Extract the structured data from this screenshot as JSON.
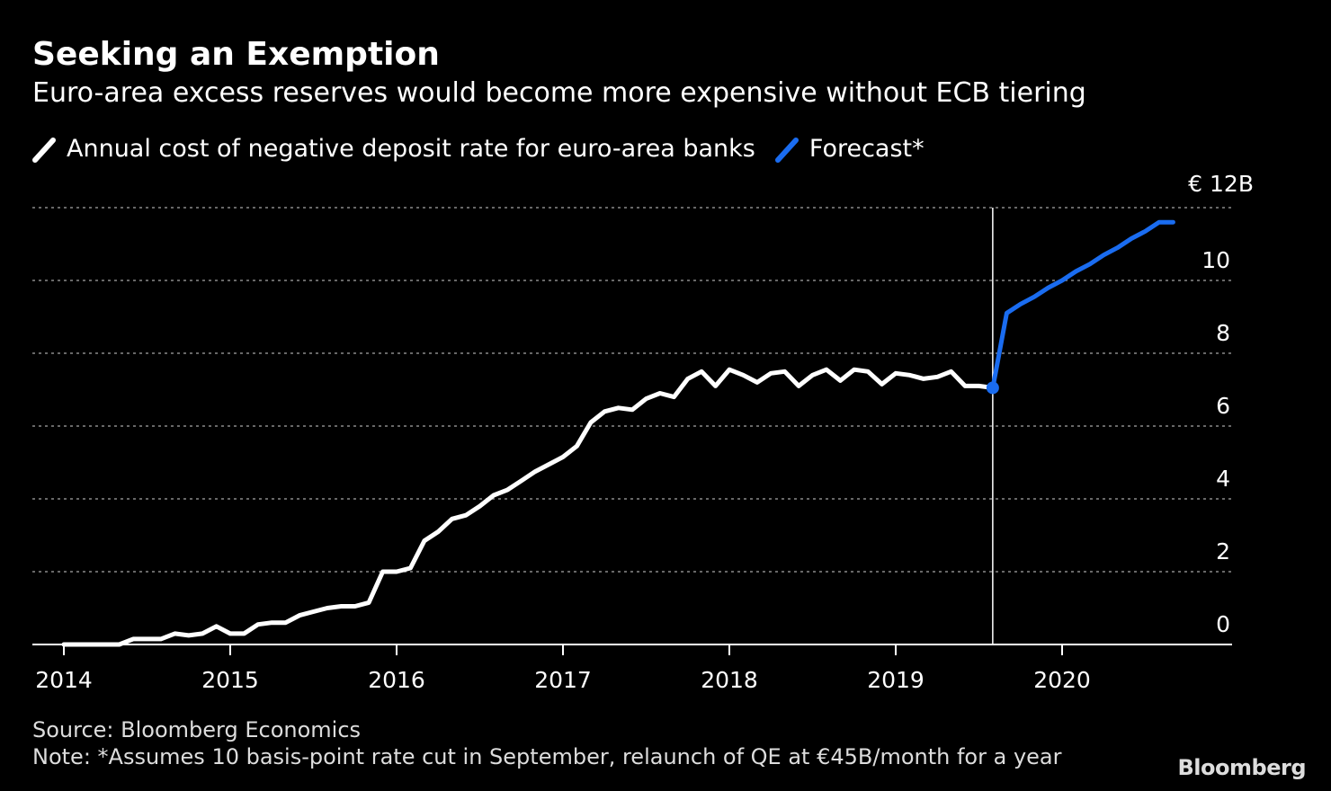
{
  "title": "Seeking an Exemption",
  "subtitle": "Euro-area excess reserves would become more expensive without ECB tiering",
  "legend": [
    {
      "label": "Annual cost of negative deposit rate for euro-area banks",
      "color": "#ffffff"
    },
    {
      "label": "Forecast*",
      "color": "#1a6cf0"
    }
  ],
  "source": "Source: Bloomberg Economics",
  "note": "Note: *Assumes 10 basis-point rate cut in September, relaunch of QE at €45B/month for a year",
  "logo": "Bloomberg",
  "chart_data": {
    "type": "line",
    "ylabel": "",
    "y_unit_label": "€ 12B",
    "ylim": [
      0,
      12
    ],
    "xlim": [
      2014.0,
      2021.0
    ],
    "y_ticks": [
      "12",
      "10",
      "8",
      "6",
      "4",
      "2",
      "0"
    ],
    "x_ticks": [
      "2014",
      "2015",
      "2016",
      "2017",
      "2018",
      "2019",
      "2020"
    ],
    "grid": true,
    "vertical_marker_x": 2019.583,
    "series": [
      {
        "name": "Annual cost of negative deposit rate for euro-area banks",
        "color": "#ffffff",
        "x": [
          2014.0,
          2014.083,
          2014.167,
          2014.25,
          2014.333,
          2014.417,
          2014.5,
          2014.583,
          2014.667,
          2014.75,
          2014.833,
          2014.917,
          2015.0,
          2015.083,
          2015.167,
          2015.25,
          2015.333,
          2015.417,
          2015.5,
          2015.583,
          2015.667,
          2015.75,
          2015.833,
          2015.917,
          2016.0,
          2016.083,
          2016.167,
          2016.25,
          2016.333,
          2016.417,
          2016.5,
          2016.583,
          2016.667,
          2016.75,
          2016.833,
          2016.917,
          2017.0,
          2017.083,
          2017.167,
          2017.25,
          2017.333,
          2017.417,
          2017.5,
          2017.583,
          2017.667,
          2017.75,
          2017.833,
          2017.917,
          2018.0,
          2018.083,
          2018.167,
          2018.25,
          2018.333,
          2018.417,
          2018.5,
          2018.583,
          2018.667,
          2018.75,
          2018.833,
          2018.917,
          2019.0,
          2019.083,
          2019.167,
          2019.25,
          2019.333,
          2019.417,
          2019.5,
          2019.583
        ],
        "values": [
          0,
          0,
          0,
          0,
          0,
          0.15,
          0.15,
          0.15,
          0.3,
          0.25,
          0.3,
          0.5,
          0.3,
          0.3,
          0.55,
          0.6,
          0.6,
          0.8,
          0.9,
          1.0,
          1.05,
          1.05,
          1.15,
          2.0,
          2.0,
          2.1,
          2.85,
          3.1,
          3.45,
          3.55,
          3.8,
          4.1,
          4.25,
          4.5,
          4.75,
          4.95,
          5.15,
          5.45,
          6.1,
          6.4,
          6.5,
          6.45,
          6.75,
          6.9,
          6.8,
          7.3,
          7.5,
          7.1,
          7.55,
          7.4,
          7.2,
          7.45,
          7.5,
          7.1,
          7.4,
          7.55,
          7.25,
          7.55,
          7.5,
          7.15,
          7.45,
          7.4,
          7.3,
          7.35,
          7.5,
          7.1,
          7.1,
          7.05
        ]
      },
      {
        "name": "Forecast*",
        "color": "#1a6cf0",
        "x": [
          2019.583,
          2019.667,
          2019.75,
          2019.833,
          2019.917,
          2020.0,
          2020.083,
          2020.167,
          2020.25,
          2020.333,
          2020.417,
          2020.5,
          2020.583,
          2020.667
        ],
        "values": [
          7.05,
          9.1,
          9.35,
          9.55,
          9.8,
          10.0,
          10.25,
          10.45,
          10.7,
          10.9,
          11.15,
          11.35,
          11.6,
          11.6
        ]
      }
    ]
  }
}
